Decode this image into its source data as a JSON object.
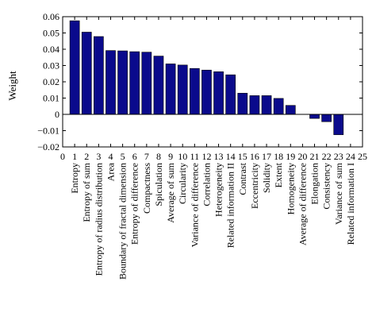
{
  "chart_data": {
    "type": "bar",
    "title": "",
    "xlabel": "",
    "ylabel": "Weight",
    "xlim": [
      0,
      25
    ],
    "ylim": [
      -0.02,
      0.06
    ],
    "yticks": [
      -0.02,
      -0.01,
      0,
      0.01,
      0.02,
      0.03,
      0.04,
      0.05,
      0.06
    ],
    "ytick_labels": [
      "−0.02",
      "−0.01",
      "0",
      "0.01",
      "0.02",
      "0.03",
      "0.04",
      "0.05",
      "0.06"
    ],
    "xticks": [
      0,
      1,
      2,
      3,
      4,
      5,
      6,
      7,
      8,
      9,
      10,
      11,
      12,
      13,
      14,
      15,
      16,
      17,
      18,
      19,
      20,
      21,
      22,
      23,
      24,
      25
    ],
    "grid": false,
    "bar_color": "#0a0a8c",
    "x": [
      1,
      2,
      3,
      4,
      5,
      6,
      7,
      8,
      9,
      10,
      11,
      12,
      13,
      14,
      15,
      16,
      17,
      18,
      19,
      20,
      21,
      22,
      23,
      24
    ],
    "values": [
      0.0575,
      0.0505,
      0.0478,
      0.0392,
      0.039,
      0.0385,
      0.0382,
      0.0358,
      0.031,
      0.0303,
      0.0282,
      0.0272,
      0.0262,
      0.0243,
      0.013,
      0.0115,
      0.0115,
      0.0098,
      0.0055,
      0,
      -0.0025,
      -0.0045,
      -0.0125,
      0
    ],
    "categories": [
      "Entropy",
      "Entropy of sum",
      "Entropy of radius distribution",
      "Area",
      "Boundary of fractal dimension",
      "Entropy of difference",
      "Compactness",
      "Spiculation",
      "Average of sum",
      "Circularity",
      "Variance of difference",
      "Correlation",
      "Heterogeneity",
      "Related information II",
      "Contrast",
      "Eccentricity",
      "Solidity",
      "Extent",
      "Homogeneity",
      "Average of difference",
      "Elongation",
      "Consistency",
      "Variance of sum",
      "Related information I"
    ]
  }
}
